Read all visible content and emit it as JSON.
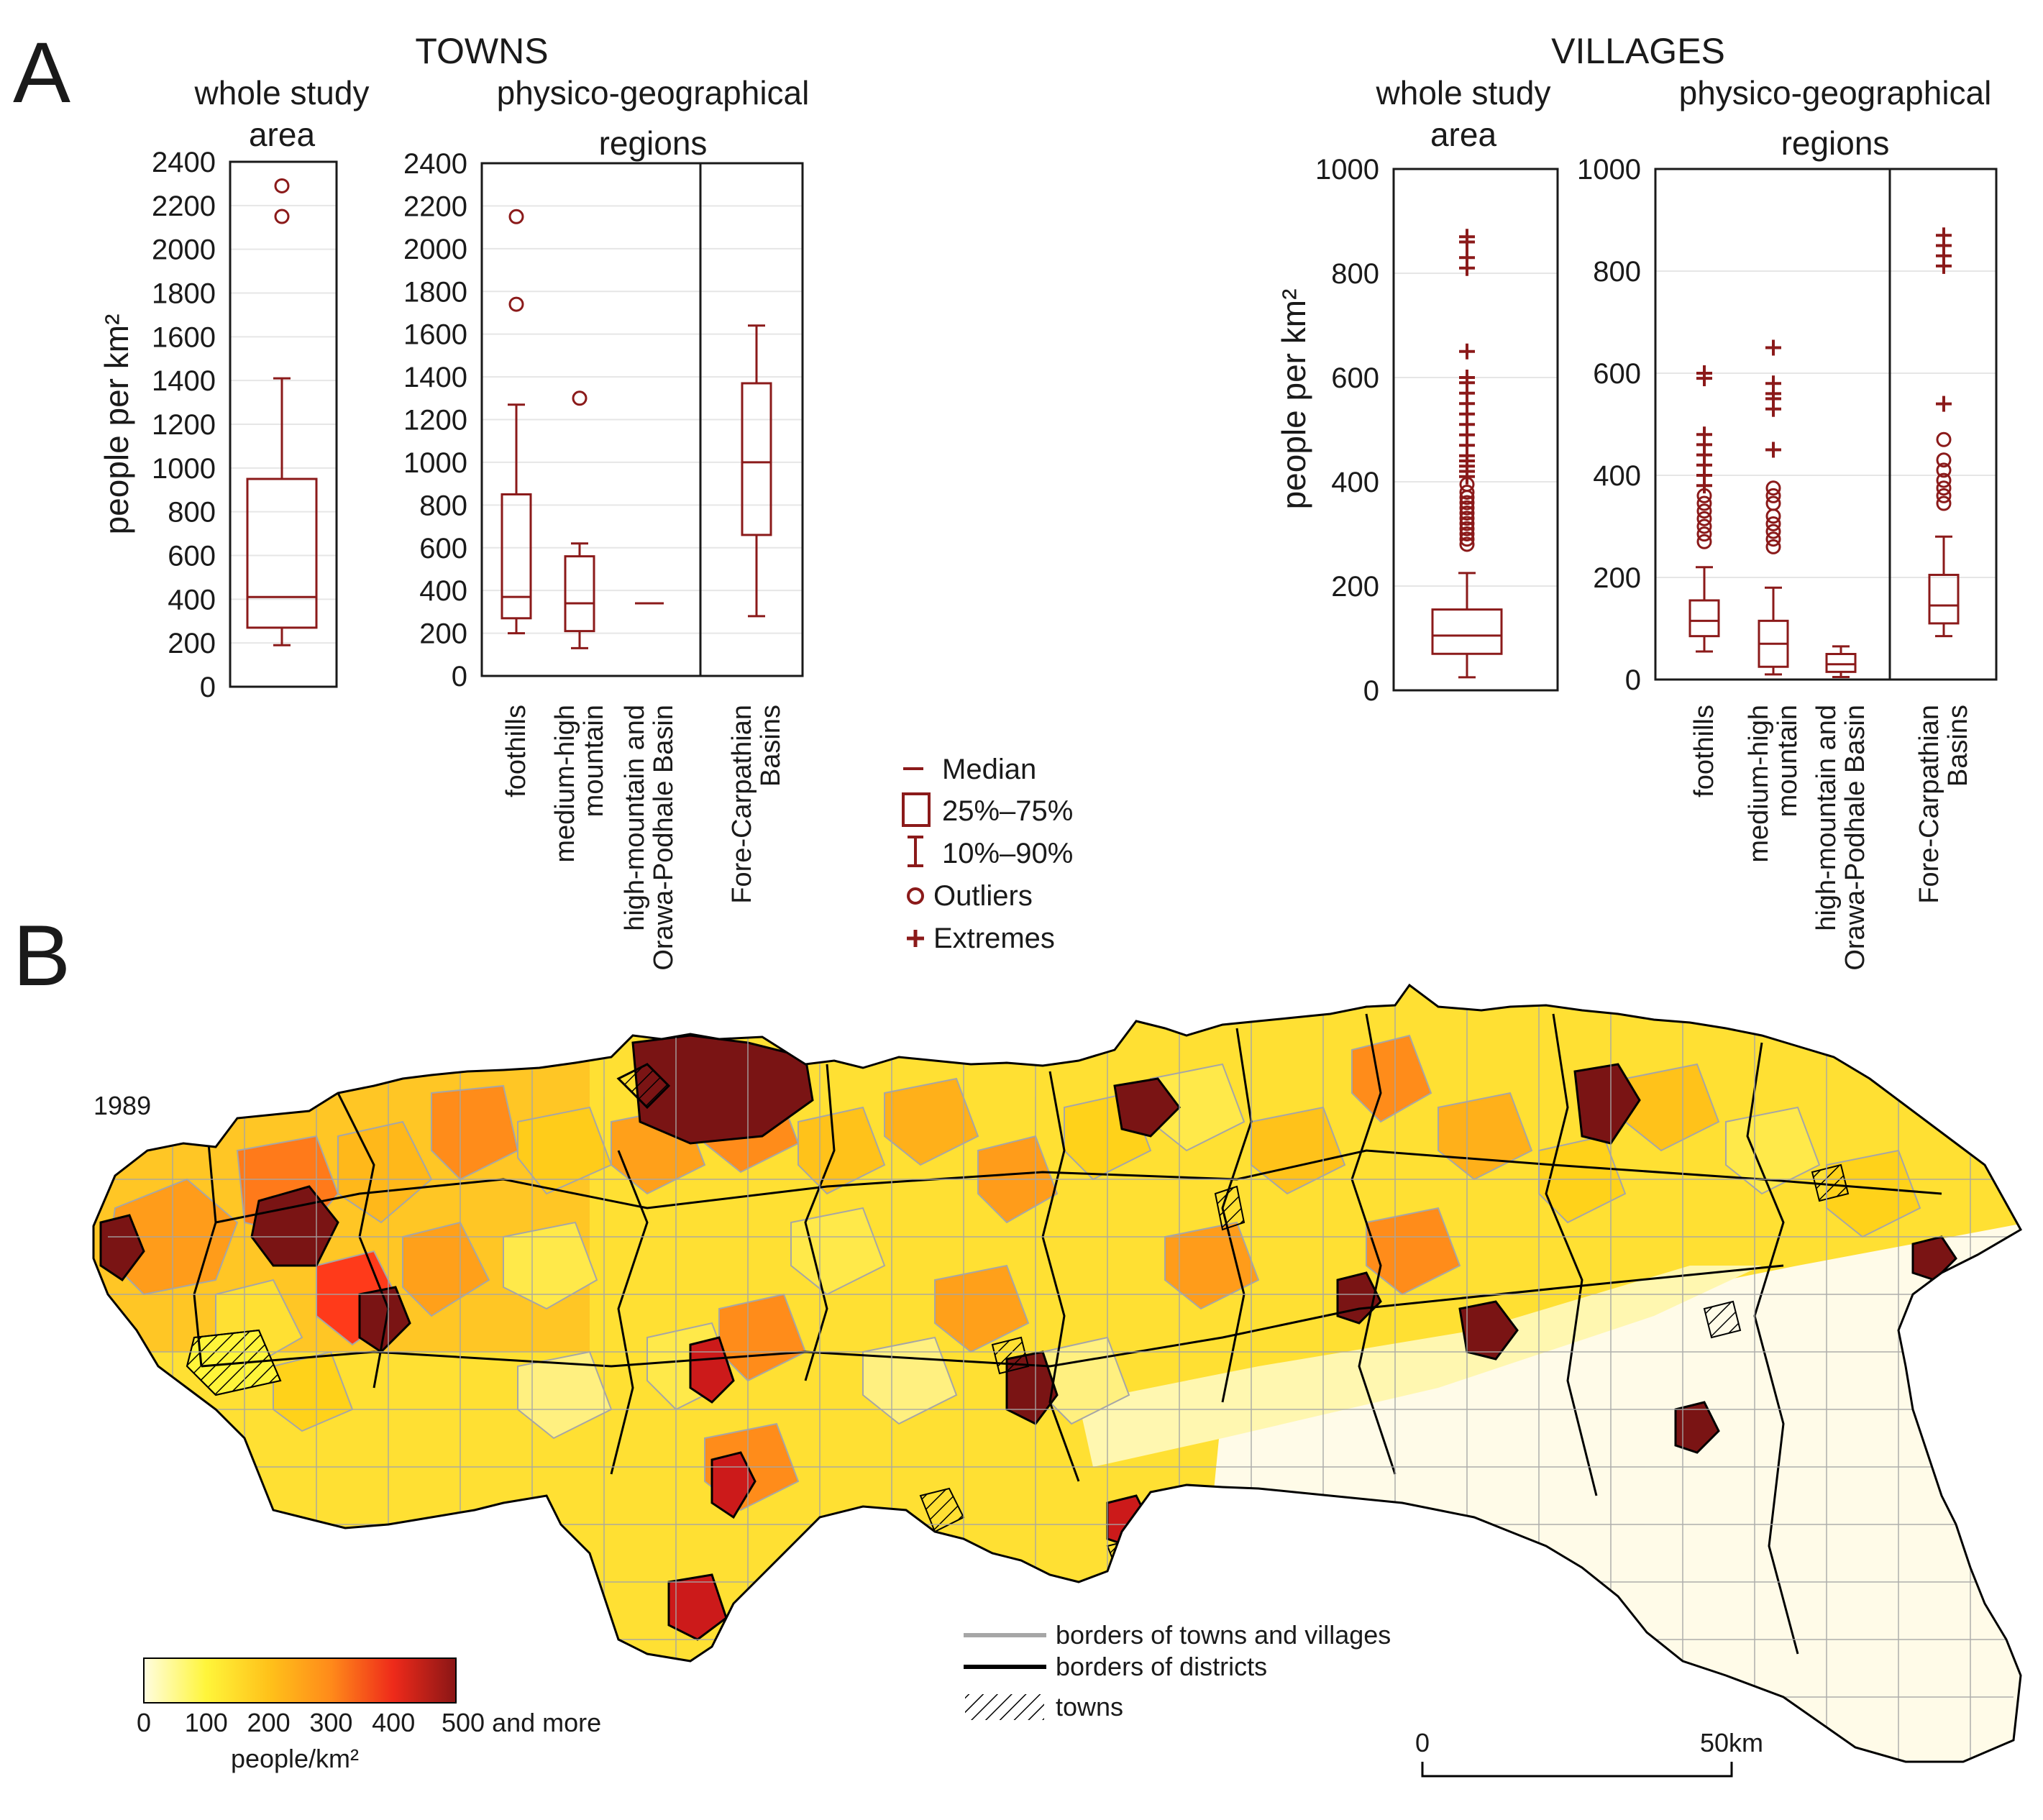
{
  "panel_a_letter": "A",
  "panel_b_letter": "B",
  "towns": {
    "title": "TOWNS",
    "whole_title_1": "whole study",
    "whole_title_2": "area",
    "regions_title_1": "physico-geographical",
    "regions_title_2": "regions",
    "ylabel": "people per km²"
  },
  "villages": {
    "title": "VILLAGES",
    "whole_title_1": "whole study",
    "whole_title_2": "area",
    "regions_title_1": "physico-geographical",
    "regions_title_2": "regions",
    "ylabel": "people per km²"
  },
  "region_labels": [
    [
      "foothills"
    ],
    [
      "medium-high",
      "mountain"
    ],
    [
      "high-mountain and",
      "Orawa-Podhale Basin"
    ],
    [
      "Fore-Carpathian",
      "Basins"
    ]
  ],
  "legend": {
    "median": "Median",
    "box": "25%–75%",
    "whisker": "10%–90%",
    "outliers": "Outliers",
    "extremes": "Extremes"
  },
  "map": {
    "year": "1989",
    "legend_borders_towns": "borders of towns and villages",
    "legend_borders_districts": "borders of districts",
    "legend_towns": "towns",
    "colorbar_ticks": [
      "0",
      "100",
      "200",
      "300",
      "400",
      "500 and more"
    ],
    "colorbar_unit": "people/km²",
    "colorbar_colors": [
      "#fffde0",
      "#fff53a",
      "#ffc21a",
      "#ff8a1a",
      "#ee2a1a",
      "#8a1616"
    ],
    "scale_zero": "0",
    "scale_end": "50km"
  },
  "colors": {
    "box": "#8b1a1a",
    "dark_red": "#7a1a1a",
    "district_border": "#000000",
    "municipal_border": "#a6a6a6"
  },
  "chart_data": [
    {
      "type": "box",
      "title": "TOWNS – whole study area",
      "ylabel": "people per km²",
      "ylim": [
        0,
        2400
      ],
      "yticks": [
        0,
        200,
        400,
        600,
        800,
        1000,
        1200,
        1400,
        1600,
        1800,
        2000,
        2200,
        2400
      ],
      "boxes": [
        {
          "name": "whole study area",
          "p10": 190,
          "q1": 270,
          "median": 410,
          "q3": 950,
          "p90": 1410,
          "outliers": [
            2150,
            2290
          ],
          "extremes": []
        }
      ]
    },
    {
      "type": "box",
      "title": "TOWNS – physico-geographical regions",
      "ylabel": "",
      "ylim": [
        0,
        2400
      ],
      "yticks": [
        0,
        200,
        400,
        600,
        800,
        1000,
        1200,
        1400,
        1600,
        1800,
        2000,
        2200,
        2400
      ],
      "boxes": [
        {
          "name": "foothills",
          "p10": 200,
          "q1": 270,
          "median": 370,
          "q3": 850,
          "p90": 1270,
          "outliers": [
            1740,
            2150
          ],
          "extremes": []
        },
        {
          "name": "medium-high mountain",
          "p10": 130,
          "q1": 210,
          "median": 340,
          "q3": 560,
          "p90": 620,
          "outliers": [
            1300
          ],
          "extremes": []
        },
        {
          "name": "high-mountain and Orawa-Podhale Basin",
          "p10": 340,
          "q1": 340,
          "median": 340,
          "q3": 340,
          "p90": 340,
          "outliers": [],
          "extremes": []
        },
        {
          "name": "Fore-Carpathian Basins",
          "p10": 280,
          "q1": 660,
          "median": 1000,
          "q3": 1370,
          "p90": 1640,
          "outliers": [],
          "extremes": []
        }
      ]
    },
    {
      "type": "box",
      "title": "VILLAGES – whole study area",
      "ylabel": "people per km²",
      "ylim": [
        0,
        1000
      ],
      "yticks": [
        0,
        200,
        400,
        600,
        800,
        1000
      ],
      "boxes": [
        {
          "name": "whole study area",
          "p10": 25,
          "q1": 70,
          "median": 105,
          "q3": 155,
          "p90": 225,
          "outliers": [
            280,
            290,
            300,
            310,
            320,
            330,
            340,
            350,
            360,
            370,
            380,
            395
          ],
          "extremes": [
            410,
            420,
            430,
            440,
            450,
            470,
            490,
            510,
            530,
            550,
            570,
            590,
            600,
            650,
            810,
            830,
            860,
            870
          ]
        }
      ]
    },
    {
      "type": "box",
      "title": "VILLAGES – physico-geographical regions",
      "ylabel": "",
      "ylim": [
        0,
        1000
      ],
      "yticks": [
        0,
        200,
        400,
        600,
        800,
        1000
      ],
      "boxes": [
        {
          "name": "foothills",
          "p10": 55,
          "q1": 85,
          "median": 115,
          "q3": 155,
          "p90": 220,
          "outliers": [
            270,
            285,
            300,
            315,
            330,
            345,
            360
          ],
          "extremes": [
            380,
            400,
            420,
            440,
            460,
            480,
            590,
            600
          ]
        },
        {
          "name": "medium-high mountain",
          "p10": 10,
          "q1": 25,
          "median": 70,
          "q3": 115,
          "p90": 180,
          "outliers": [
            260,
            275,
            290,
            305,
            320,
            345,
            360,
            375
          ],
          "extremes": [
            450,
            530,
            550,
            560,
            580,
            650
          ]
        },
        {
          "name": "high-mountain and Orawa-Podhale Basin",
          "p10": 5,
          "q1": 15,
          "median": 30,
          "q3": 50,
          "p90": 65,
          "outliers": [],
          "extremes": []
        },
        {
          "name": "Fore-Carpathian Basins",
          "p10": 85,
          "q1": 110,
          "median": 145,
          "q3": 205,
          "p90": 280,
          "outliers": [
            345,
            360,
            375,
            390,
            410,
            430,
            470
          ],
          "extremes": [
            540,
            810,
            830,
            850,
            870
          ]
        }
      ]
    }
  ]
}
